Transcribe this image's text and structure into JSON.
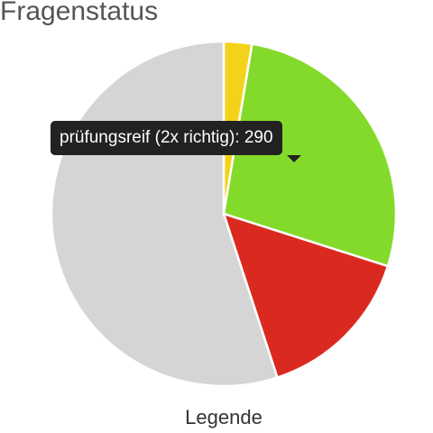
{
  "chart_data": {
    "type": "pie",
    "title": "Fragenstatus",
    "categories": [
      null,
      "prüfungsreif (2x richtig)",
      null,
      null
    ],
    "values": [
      28,
      290,
      160,
      585
    ],
    "colors": [
      "#f4d21a",
      "#84da2a",
      "#da2a20",
      "#d5d5d5"
    ],
    "tooltip_index": 1,
    "legend_button": "Legende"
  }
}
